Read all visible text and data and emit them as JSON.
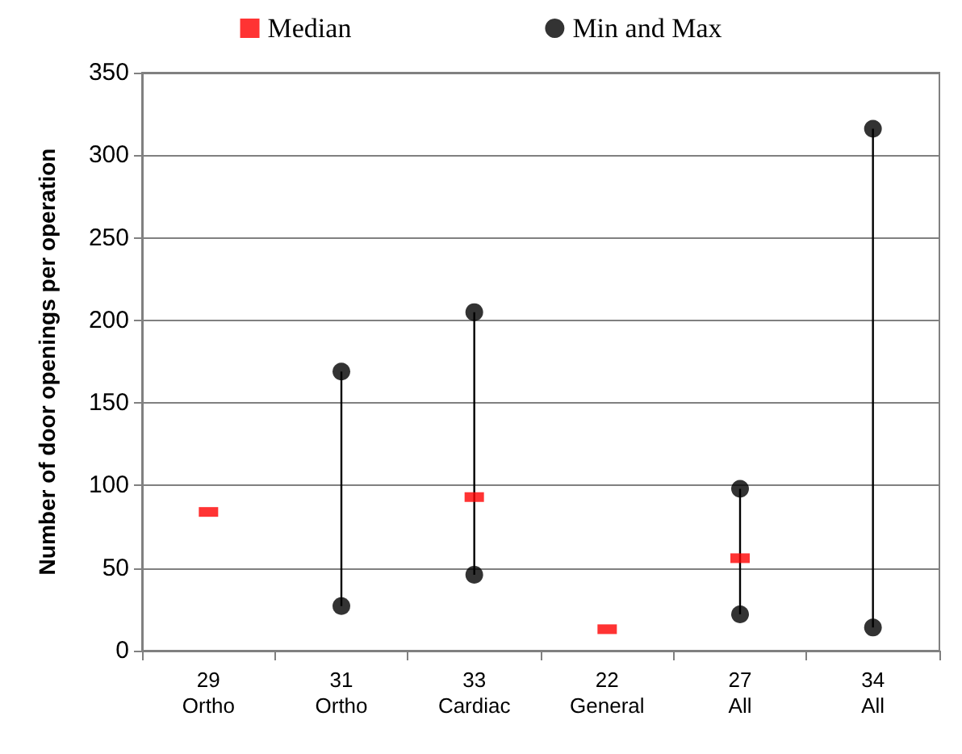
{
  "chart_data": {
    "type": "scatter",
    "ylabel": "Number of door openings per operation",
    "categories": [
      "29\nOrtho",
      "31\nOrtho",
      "33\nCardiac",
      "22\nGeneral",
      "27\nAll",
      "34\nAll"
    ],
    "series": [
      {
        "type": "bar",
        "color": "#000000",
        "base": [
          null,
          27,
          46,
          null,
          22,
          14
        ],
        "values": [
          null,
          142,
          159,
          null,
          76,
          302
        ]
      },
      {
        "name": "Median",
        "color": "#ff0000",
        "marker": "square",
        "values": [
          84,
          null,
          93,
          13,
          56,
          null
        ]
      },
      {
        "name": "Min and Max",
        "type": "scatter",
        "color": "#000000",
        "marker": "circle",
        "x": [
          "31\nOrtho",
          "31\nOrtho",
          "33\nCardiac",
          "33\nCardiac",
          "27\nAll",
          "27\nAll",
          "34\nAll",
          "34\nAll"
        ],
        "values": [
          169,
          27,
          205,
          46,
          98,
          22,
          316,
          14
        ]
      }
    ],
    "ylim": [
      0,
      350
    ],
    "yticks": [
      0,
      50,
      100,
      150,
      200,
      250,
      300,
      350
    ],
    "grid": "y",
    "legend": "top"
  }
}
